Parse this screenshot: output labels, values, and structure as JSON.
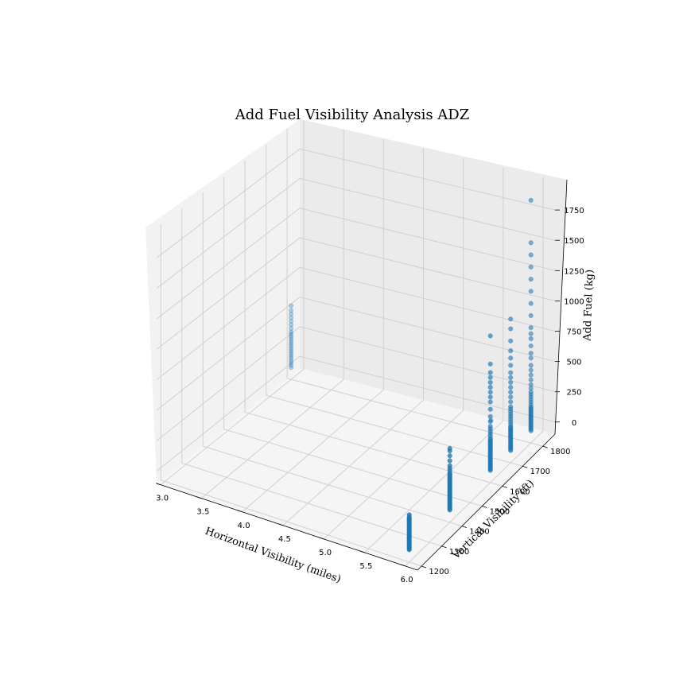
{
  "chart_data": {
    "type": "scatter",
    "projection": "3d",
    "title": "Add Fuel Visibility Analysis ADZ",
    "xlabel": "Horizontal Visibility (miles)",
    "ylabel": "Vertical Visibility (ft)",
    "zlabel": "Add Fuel (kg)",
    "xlim": [
      2.95,
      6.15
    ],
    "ylim": [
      1180,
      1860
    ],
    "zlim": [
      -100,
      2000
    ],
    "xticks": [
      "3.0",
      "3.5",
      "4.0",
      "4.5",
      "5.0",
      "5.5",
      "6.0"
    ],
    "yticks": [
      "1200",
      "1300",
      "1400",
      "1500",
      "1600",
      "1700",
      "1800"
    ],
    "zticks": [
      "0",
      "250",
      "500",
      "750",
      "1000",
      "1250",
      "1500",
      "1750"
    ],
    "grid": true,
    "marker_color": "#1f77b4",
    "clusters": [
      {
        "x": 3.0,
        "y": 1800,
        "z": [
          0,
          20,
          40,
          60,
          80,
          100,
          120,
          140,
          160,
          180,
          200,
          220,
          240,
          260,
          280,
          300,
          330,
          360,
          390,
          420,
          450,
          480,
          520
        ]
      },
      {
        "x": 6.0,
        "y": 1200,
        "z": [
          0,
          10,
          20,
          30,
          40,
          50,
          60,
          70,
          80,
          90,
          100,
          110,
          120,
          130,
          140,
          150,
          160,
          170,
          180,
          190,
          200,
          210,
          220,
          230,
          240,
          250,
          260,
          280
        ]
      },
      {
        "x": 6.0,
        "y": 1400,
        "z": [
          0,
          10,
          20,
          30,
          40,
          50,
          60,
          70,
          80,
          90,
          100,
          110,
          120,
          130,
          140,
          150,
          160,
          170,
          180,
          190,
          200,
          210,
          220,
          230,
          240,
          250,
          260,
          270,
          280,
          290,
          300,
          320,
          340,
          360,
          400,
          440,
          480,
          500
        ]
      },
      {
        "x": 6.0,
        "y": 1600,
        "z": [
          0,
          10,
          20,
          30,
          40,
          50,
          60,
          70,
          80,
          90,
          100,
          110,
          120,
          130,
          140,
          150,
          160,
          170,
          180,
          190,
          200,
          210,
          220,
          230,
          240,
          250,
          260,
          280,
          300,
          320,
          340,
          360,
          400,
          440,
          500,
          560,
          600,
          640,
          680,
          720,
          760,
          800,
          870,
          1100
        ]
      },
      {
        "x": 6.0,
        "y": 1700,
        "z": [
          0,
          10,
          20,
          30,
          40,
          50,
          60,
          70,
          80,
          90,
          100,
          110,
          120,
          130,
          140,
          150,
          160,
          170,
          180,
          190,
          200,
          220,
          240,
          260,
          280,
          300,
          320,
          340,
          360,
          400,
          440,
          480,
          520,
          560,
          600,
          640,
          700,
          760,
          820,
          900,
          1000,
          1080
        ]
      },
      {
        "x": 6.0,
        "y": 1800,
        "z": [
          0,
          10,
          20,
          30,
          40,
          50,
          60,
          70,
          80,
          90,
          100,
          110,
          120,
          130,
          140,
          150,
          160,
          170,
          180,
          190,
          200,
          220,
          240,
          260,
          280,
          300,
          320,
          350,
          380,
          420,
          460,
          500,
          540,
          600,
          640,
          700,
          760,
          800,
          850,
          950,
          1050,
          1150,
          1250,
          1350,
          1450,
          1550,
          1900
        ]
      },
      {
        "x": 5.5,
        "y": 1800,
        "z": [
          0
        ]
      }
    ]
  }
}
